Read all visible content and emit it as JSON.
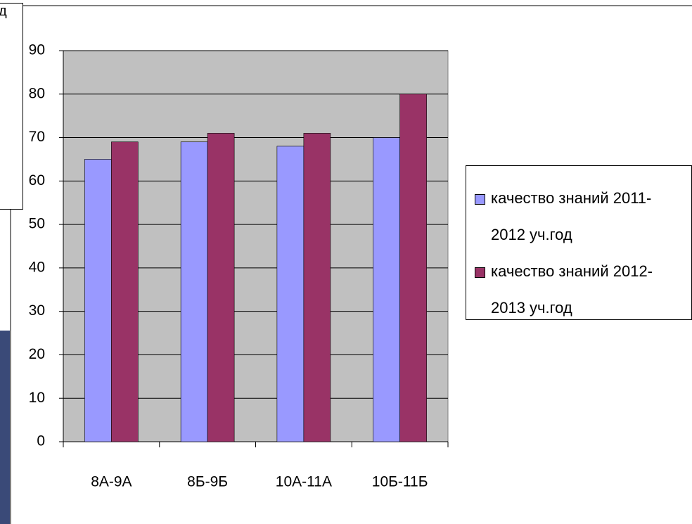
{
  "overlay_text": "д",
  "chart_data": {
    "type": "bar",
    "categories": [
      "8А-9А",
      "8Б-9Б",
      "10А-11А",
      "10Б-11Б"
    ],
    "series": [
      {
        "name": "качество знаний 2011-2012 уч.год",
        "color": "#9999ff",
        "values": [
          65,
          69,
          68,
          70
        ]
      },
      {
        "name": "качество знаний 2012-2013 уч.год",
        "color": "#993366",
        "values": [
          69,
          71,
          71,
          80
        ]
      }
    ],
    "ylim": [
      0,
      90
    ],
    "yticks": [
      0,
      10,
      20,
      30,
      40,
      50,
      60,
      70,
      80,
      90
    ],
    "grid": true,
    "plot_background": "#c0c0c0",
    "legend": "right"
  }
}
